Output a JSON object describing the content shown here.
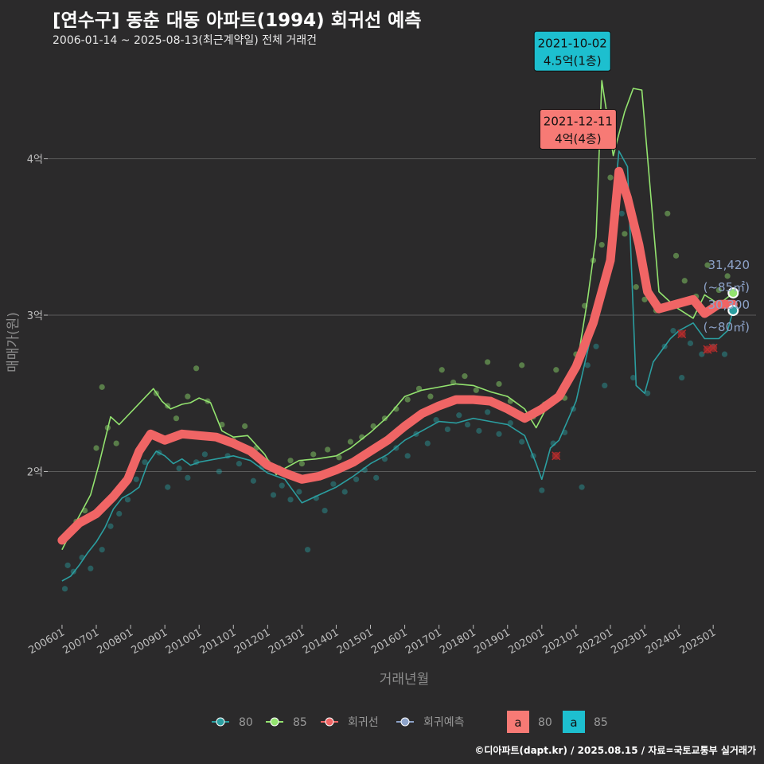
{
  "title": "[연수구] 동춘 대동 아파트(1994) 회귀선 예측",
  "subtitle": "2006-01-14 ~ 2025-08-13(최근계약일) 전체 거래건",
  "caption": "©디아파트(dapt.kr) / 2025.08.15 / 자료=국토교통부 실거래가",
  "colors": {
    "background": "#2b2a2b",
    "grid": "#5b5b5b",
    "s80": "#2b9ea0",
    "s85": "#93e36f",
    "regression": "#f06565",
    "forecast": "#8da3c9",
    "ann80_fill": "#f77a75",
    "ann85_fill": "#1dbfcf",
    "cancel_marker": "#b42c2c"
  },
  "chart_data": {
    "type": "line",
    "xlabel": "거래년월",
    "ylabel": "매매가(원)",
    "x_tick_labels": [
      "200601",
      "200701",
      "200801",
      "200901",
      "201001",
      "201101",
      "201201",
      "201301",
      "201401",
      "201501",
      "201601",
      "201701",
      "201801",
      "201901",
      "202001",
      "202101",
      "202201",
      "202301",
      "202401",
      "202501"
    ],
    "y_tick_labels": [
      "2억",
      "3억",
      "4억"
    ],
    "y_ticks": [
      20000,
      30000,
      40000
    ],
    "xlim": [
      "2005-08",
      "2026-04"
    ],
    "ylim": [
      10200,
      47000
    ],
    "grid": true,
    "legend_position": "bottom",
    "series": [
      {
        "name": "80",
        "role": "line80",
        "points": [
          [
            "2006-01",
            13000
          ],
          [
            "2006-04",
            13300
          ],
          [
            "2006-07",
            14000
          ],
          [
            "2006-10",
            14800
          ],
          [
            "2007-01",
            15500
          ],
          [
            "2007-04",
            16400
          ],
          [
            "2007-07",
            17600
          ],
          [
            "2007-10",
            18300
          ],
          [
            "2008-01",
            18600
          ],
          [
            "2008-04",
            19000
          ],
          [
            "2008-07",
            20500
          ],
          [
            "2008-10",
            21300
          ],
          [
            "2009-01",
            21000
          ],
          [
            "2009-04",
            20500
          ],
          [
            "2009-07",
            20800
          ],
          [
            "2009-10",
            20400
          ],
          [
            "2010-01",
            20600
          ],
          [
            "2010-07",
            20800
          ],
          [
            "2011-01",
            21000
          ],
          [
            "2011-07",
            20700
          ],
          [
            "2012-01",
            19900
          ],
          [
            "2012-07",
            19500
          ],
          [
            "2013-01",
            18000
          ],
          [
            "2013-07",
            18500
          ],
          [
            "2014-01",
            19000
          ],
          [
            "2014-07",
            19700
          ],
          [
            "2015-01",
            20500
          ],
          [
            "2015-07",
            21100
          ],
          [
            "2016-01",
            22000
          ],
          [
            "2016-07",
            22600
          ],
          [
            "2017-01",
            23200
          ],
          [
            "2017-07",
            23100
          ],
          [
            "2018-01",
            23400
          ],
          [
            "2018-07",
            23200
          ],
          [
            "2019-01",
            23000
          ],
          [
            "2019-07",
            22300
          ],
          [
            "2019-11",
            20500
          ],
          [
            "2020-01",
            19500
          ],
          [
            "2020-04",
            21500
          ],
          [
            "2020-07",
            22000
          ],
          [
            "2021-01",
            24500
          ],
          [
            "2021-06",
            28500
          ],
          [
            "2021-10",
            31500
          ],
          [
            "2022-01",
            34500
          ],
          [
            "2022-04",
            40500
          ],
          [
            "2022-07",
            39500
          ],
          [
            "2022-10",
            25500
          ],
          [
            "2023-01",
            25000
          ],
          [
            "2023-04",
            27000
          ],
          [
            "2023-10",
            28500
          ],
          [
            "2024-01",
            29000
          ],
          [
            "2024-06",
            29500
          ],
          [
            "2024-10",
            28500
          ],
          [
            "2025-03",
            28500
          ],
          [
            "2025-06",
            29000
          ],
          [
            "2025-08",
            30300
          ]
        ]
      },
      {
        "name": "85",
        "role": "line85",
        "points": [
          [
            "2006-01",
            15000
          ],
          [
            "2006-06",
            16800
          ],
          [
            "2006-11",
            18500
          ],
          [
            "2007-02",
            20500
          ],
          [
            "2007-06",
            23500
          ],
          [
            "2007-09",
            23000
          ],
          [
            "2008-09",
            25300
          ],
          [
            "2008-12",
            24500
          ],
          [
            "2009-03",
            24000
          ],
          [
            "2009-07",
            24300
          ],
          [
            "2009-10",
            24400
          ],
          [
            "2010-01",
            24700
          ],
          [
            "2010-05",
            24400
          ],
          [
            "2010-09",
            22600
          ],
          [
            "2011-01",
            22200
          ],
          [
            "2011-06",
            22300
          ],
          [
            "2011-12",
            21100
          ],
          [
            "2012-04",
            19800
          ],
          [
            "2012-07",
            20200
          ],
          [
            "2012-12",
            20700
          ],
          [
            "2013-06",
            20800
          ],
          [
            "2014-01",
            21000
          ],
          [
            "2014-06",
            21500
          ],
          [
            "2015-01",
            22500
          ],
          [
            "2015-07",
            23500
          ],
          [
            "2016-01",
            24800
          ],
          [
            "2016-07",
            25200
          ],
          [
            "2017-01",
            25400
          ],
          [
            "2017-07",
            25600
          ],
          [
            "2018-01",
            25500
          ],
          [
            "2018-07",
            25100
          ],
          [
            "2019-01",
            24800
          ],
          [
            "2019-07",
            24000
          ],
          [
            "2019-11",
            22800
          ],
          [
            "2020-03",
            24200
          ],
          [
            "2020-07",
            24900
          ],
          [
            "2021-01",
            26500
          ],
          [
            "2021-05",
            31000
          ],
          [
            "2021-08",
            35000
          ],
          [
            "2021-10",
            45000
          ],
          [
            "2022-02",
            40200
          ],
          [
            "2022-06",
            43000
          ],
          [
            "2022-09",
            44500
          ],
          [
            "2022-12",
            44400
          ],
          [
            "2023-06",
            31500
          ],
          [
            "2023-12",
            30500
          ],
          [
            "2024-06",
            29800
          ],
          [
            "2024-10",
            31300
          ],
          [
            "2025-03",
            30700
          ],
          [
            "2025-08",
            31420
          ]
        ]
      },
      {
        "name": "회귀선",
        "role": "regression",
        "points": [
          [
            "2006-01",
            15600
          ],
          [
            "2006-07",
            16700
          ],
          [
            "2007-01",
            17300
          ],
          [
            "2007-07",
            18400
          ],
          [
            "2007-12",
            19500
          ],
          [
            "2008-04",
            21300
          ],
          [
            "2008-08",
            22400
          ],
          [
            "2009-01",
            22000
          ],
          [
            "2009-07",
            22400
          ],
          [
            "2010-01",
            22300
          ],
          [
            "2010-07",
            22200
          ],
          [
            "2011-01",
            21800
          ],
          [
            "2011-07",
            21300
          ],
          [
            "2012-01",
            20400
          ],
          [
            "2012-07",
            19900
          ],
          [
            "2013-01",
            19500
          ],
          [
            "2013-07",
            19700
          ],
          [
            "2014-01",
            20100
          ],
          [
            "2014-07",
            20600
          ],
          [
            "2015-01",
            21300
          ],
          [
            "2015-07",
            22000
          ],
          [
            "2016-01",
            22900
          ],
          [
            "2016-07",
            23700
          ],
          [
            "2017-01",
            24200
          ],
          [
            "2017-07",
            24600
          ],
          [
            "2018-01",
            24600
          ],
          [
            "2018-07",
            24500
          ],
          [
            "2019-01",
            24000
          ],
          [
            "2019-07",
            23400
          ],
          [
            "2020-01",
            24000
          ],
          [
            "2020-07",
            24800
          ],
          [
            "2021-01",
            26700
          ],
          [
            "2021-07",
            29500
          ],
          [
            "2022-01",
            33500
          ],
          [
            "2022-04",
            39200
          ],
          [
            "2022-07",
            37500
          ],
          [
            "2022-11",
            34500
          ],
          [
            "2023-02",
            31500
          ],
          [
            "2023-06",
            30400
          ],
          [
            "2023-12",
            30700
          ],
          [
            "2024-06",
            31000
          ],
          [
            "2024-10",
            30100
          ],
          [
            "2025-03",
            30700
          ],
          [
            "2025-08",
            30700
          ]
        ]
      }
    ],
    "scatter_80": [
      [
        "2006-02",
        12500
      ],
      [
        "2006-03",
        14000
      ],
      [
        "2006-05",
        13600
      ],
      [
        "2006-08",
        14500
      ],
      [
        "2006-11",
        13800
      ],
      [
        "2007-03",
        15000
      ],
      [
        "2007-06",
        16500
      ],
      [
        "2007-09",
        17300
      ],
      [
        "2007-12",
        18200
      ],
      [
        "2008-03",
        19500
      ],
      [
        "2008-06",
        20600
      ],
      [
        "2008-11",
        21200
      ],
      [
        "2009-02",
        19000
      ],
      [
        "2009-06",
        20200
      ],
      [
        "2009-09",
        19600
      ],
      [
        "2009-12",
        20600
      ],
      [
        "2010-03",
        21100
      ],
      [
        "2010-08",
        20000
      ],
      [
        "2010-11",
        21000
      ],
      [
        "2011-03",
        20500
      ],
      [
        "2011-08",
        19400
      ],
      [
        "2011-11",
        20300
      ],
      [
        "2012-03",
        18500
      ],
      [
        "2012-06",
        19100
      ],
      [
        "2012-09",
        18200
      ],
      [
        "2012-12",
        18700
      ],
      [
        "2013-03",
        15000
      ],
      [
        "2013-06",
        18300
      ],
      [
        "2013-09",
        17500
      ],
      [
        "2013-12",
        19200
      ],
      [
        "2014-04",
        18700
      ],
      [
        "2014-08",
        19500
      ],
      [
        "2014-11",
        20100
      ],
      [
        "2015-03",
        19600
      ],
      [
        "2015-06",
        20800
      ],
      [
        "2015-10",
        21500
      ],
      [
        "2016-02",
        21000
      ],
      [
        "2016-05",
        22400
      ],
      [
        "2016-09",
        21800
      ],
      [
        "2016-12",
        23300
      ],
      [
        "2017-04",
        22700
      ],
      [
        "2017-08",
        23600
      ],
      [
        "2017-11",
        23000
      ],
      [
        "2018-03",
        22600
      ],
      [
        "2018-06",
        23800
      ],
      [
        "2018-10",
        22400
      ],
      [
        "2019-02",
        23100
      ],
      [
        "2019-06",
        21900
      ],
      [
        "2019-10",
        21000
      ],
      [
        "2020-01",
        18800
      ],
      [
        "2020-05",
        21800
      ],
      [
        "2020-09",
        22500
      ],
      [
        "2020-12",
        24000
      ],
      [
        "2021-03",
        19000
      ],
      [
        "2021-05",
        26800
      ],
      [
        "2021-08",
        28000
      ],
      [
        "2021-11",
        25500
      ],
      [
        "2022-05",
        36500
      ],
      [
        "2022-09",
        26000
      ],
      [
        "2023-02",
        25000
      ],
      [
        "2023-08",
        28000
      ],
      [
        "2023-11",
        29000
      ],
      [
        "2024-02",
        26000
      ],
      [
        "2024-05",
        28200
      ],
      [
        "2024-09",
        27500
      ],
      [
        "2025-01",
        28000
      ],
      [
        "2025-05",
        27500
      ]
    ],
    "scatter_85": [
      [
        "2006-06",
        16800
      ],
      [
        "2006-09",
        17500
      ],
      [
        "2007-01",
        21500
      ],
      [
        "2007-03",
        25400
      ],
      [
        "2007-05",
        22800
      ],
      [
        "2007-08",
        21800
      ],
      [
        "2008-10",
        25000
      ],
      [
        "2009-02",
        24200
      ],
      [
        "2009-05",
        23400
      ],
      [
        "2009-09",
        24800
      ],
      [
        "2009-12",
        26600
      ],
      [
        "2010-04",
        24500
      ],
      [
        "2010-09",
        23000
      ],
      [
        "2011-01",
        22000
      ],
      [
        "2011-05",
        22900
      ],
      [
        "2011-09",
        21500
      ],
      [
        "2012-01",
        20600
      ],
      [
        "2012-05",
        20200
      ],
      [
        "2012-09",
        20700
      ],
      [
        "2013-01",
        20500
      ],
      [
        "2013-05",
        21100
      ],
      [
        "2013-10",
        21400
      ],
      [
        "2014-02",
        20900
      ],
      [
        "2014-06",
        21900
      ],
      [
        "2014-10",
        22200
      ],
      [
        "2015-02",
        22900
      ],
      [
        "2015-06",
        23400
      ],
      [
        "2015-10",
        24000
      ],
      [
        "2016-02",
        24600
      ],
      [
        "2016-06",
        25300
      ],
      [
        "2016-10",
        24800
      ],
      [
        "2017-02",
        26500
      ],
      [
        "2017-06",
        25700
      ],
      [
        "2017-10",
        26100
      ],
      [
        "2018-02",
        25200
      ],
      [
        "2018-06",
        27000
      ],
      [
        "2018-10",
        25600
      ],
      [
        "2019-02",
        24500
      ],
      [
        "2019-06",
        26800
      ],
      [
        "2019-10",
        23500
      ],
      [
        "2020-02",
        24300
      ],
      [
        "2020-06",
        26500
      ],
      [
        "2020-09",
        24700
      ],
      [
        "2021-01",
        27500
      ],
      [
        "2021-04",
        30600
      ],
      [
        "2021-07",
        33500
      ],
      [
        "2021-10",
        34500
      ],
      [
        "2022-01",
        38800
      ],
      [
        "2022-03",
        36800
      ],
      [
        "2022-06",
        35200
      ],
      [
        "2022-10",
        31800
      ],
      [
        "2023-01",
        31000
      ],
      [
        "2023-05",
        30300
      ],
      [
        "2023-09",
        36500
      ],
      [
        "2023-12",
        33800
      ],
      [
        "2024-03",
        32200
      ],
      [
        "2024-07",
        31200
      ],
      [
        "2024-11",
        33200
      ],
      [
        "2025-03",
        31600
      ],
      [
        "2025-06",
        32500
      ]
    ],
    "cancelled": [
      [
        "2020-06",
        21000
      ],
      [
        "2021-10",
        42900
      ],
      [
        "2024-02",
        28800
      ],
      [
        "2024-11",
        27800
      ],
      [
        "2025-01",
        27900
      ]
    ],
    "forecast_points": [
      {
        "series": "85",
        "date": "2025-08",
        "value": 31420
      },
      {
        "series": "80",
        "date": "2025-08",
        "value": 30300
      }
    ],
    "end_labels": [
      {
        "value_text": "31,420",
        "area_text": "(~85㎡)"
      },
      {
        "value_text": "30,300",
        "area_text": "(~80㎡)"
      }
    ],
    "annotations": [
      {
        "date_text": "2021-10-02",
        "price_text": "4.5억(1층)",
        "series": "85",
        "date": "2021-10",
        "value": 45000
      },
      {
        "date_text": "2021-12-11",
        "price_text": "4억(4층)",
        "series": "80",
        "date": "2021-12",
        "value": 40000
      }
    ]
  },
  "legend": {
    "items": [
      {
        "label": "80",
        "color": "#2b9ea0"
      },
      {
        "label": "85",
        "color": "#93e36f"
      },
      {
        "label": "회귀선",
        "color": "#f06565"
      },
      {
        "label": "회귀예측",
        "color": "#8da3c9"
      }
    ],
    "fill_items": [
      {
        "glyph": "a",
        "label": "80",
        "color": "#f77a75"
      },
      {
        "glyph": "a",
        "label": "85",
        "color": "#1dbfcf"
      }
    ]
  }
}
